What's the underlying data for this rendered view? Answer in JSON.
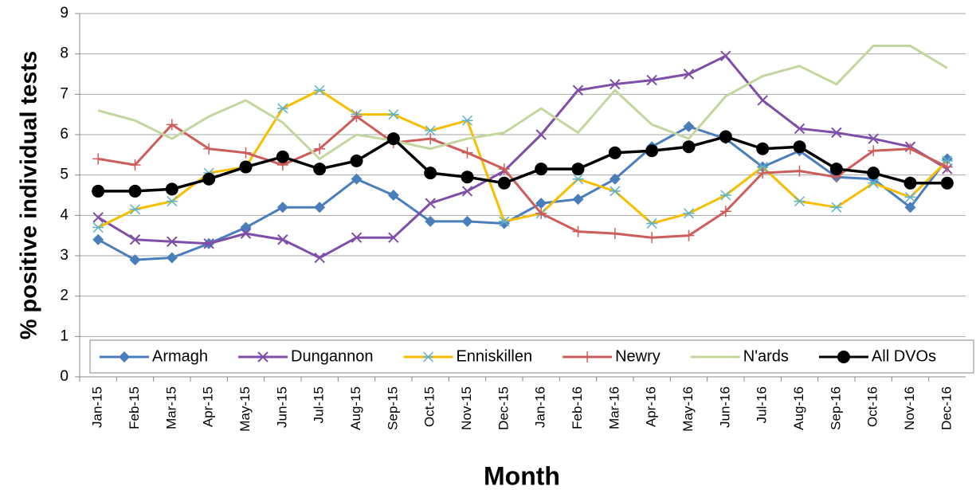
{
  "chart_data": {
    "type": "line",
    "x_label": "Month",
    "y_label": "% positive individual tests",
    "categories": [
      "Jan-15",
      "Feb-15",
      "Mar-15",
      "Apr-15",
      "May-15",
      "Jun-15",
      "Jul-15",
      "Aug-15",
      "Sep-15",
      "Oct-15",
      "Nov-15",
      "Dec-15",
      "Jan-16",
      "Feb-16",
      "Mar-16",
      "Apr-16",
      "May-16",
      "Jun-16",
      "Jul-16",
      "Aug-16",
      "Sep-16",
      "Oct-16",
      "Nov-16",
      "Dec-16"
    ],
    "ylim": [
      0,
      9
    ],
    "yticks": [
      0,
      1,
      2,
      3,
      4,
      5,
      6,
      7,
      8,
      9
    ],
    "grid": true,
    "legend": "bottom",
    "series": [
      {
        "name": "Armagh",
        "color": "#4a7ebb",
        "marker": "diamond",
        "values": [
          3.4,
          2.9,
          2.95,
          3.3,
          3.7,
          4.2,
          4.2,
          4.9,
          4.5,
          3.85,
          3.85,
          3.8,
          4.3,
          4.4,
          4.9,
          5.7,
          6.2,
          5.9,
          5.2,
          5.6,
          4.95,
          4.9,
          4.2,
          5.4
        ]
      },
      {
        "name": "Dungannon",
        "color": "#7f4ea8",
        "marker": "x",
        "values": [
          3.95,
          3.4,
          3.35,
          3.3,
          3.55,
          3.4,
          2.95,
          3.45,
          3.45,
          4.3,
          4.6,
          5.1,
          6.0,
          7.1,
          7.25,
          7.35,
          7.5,
          7.95,
          6.85,
          6.15,
          6.05,
          5.9,
          5.7,
          5.15
        ]
      },
      {
        "name": "Enniskillen",
        "color": "#f7be00",
        "marker": "star",
        "values": [
          3.7,
          4.15,
          4.35,
          5.05,
          5.2,
          6.65,
          7.1,
          6.5,
          6.5,
          6.1,
          6.35,
          3.85,
          4.05,
          4.9,
          4.6,
          3.8,
          4.05,
          4.5,
          5.2,
          4.35,
          4.2,
          4.8,
          4.45,
          5.35
        ]
      },
      {
        "name": "Newry",
        "color": "#cd5d5a",
        "marker": "plus",
        "values": [
          5.4,
          5.25,
          6.25,
          5.65,
          5.55,
          5.25,
          5.65,
          6.45,
          5.8,
          5.9,
          5.55,
          5.15,
          4.05,
          3.6,
          3.55,
          3.45,
          3.5,
          4.1,
          5.05,
          5.1,
          4.95,
          5.6,
          5.65,
          5.2
        ]
      },
      {
        "name": "N'ards",
        "color": "#c4d6a0",
        "marker": "none",
        "values": [
          6.6,
          6.35,
          5.9,
          6.45,
          6.85,
          6.3,
          5.4,
          6.0,
          5.85,
          5.65,
          5.9,
          6.05,
          6.65,
          6.05,
          7.1,
          6.25,
          5.9,
          6.95,
          7.45,
          7.7,
          7.25,
          8.2,
          8.2,
          7.65
        ]
      },
      {
        "name": "All DVOs",
        "color": "#000000",
        "marker": "circle",
        "values": [
          4.6,
          4.6,
          4.65,
          4.9,
          5.2,
          5.45,
          5.15,
          5.35,
          5.9,
          5.05,
          4.95,
          4.8,
          5.15,
          5.15,
          5.55,
          5.6,
          5.7,
          5.95,
          5.65,
          5.7,
          5.15,
          5.05,
          4.8,
          4.8
        ]
      }
    ]
  }
}
